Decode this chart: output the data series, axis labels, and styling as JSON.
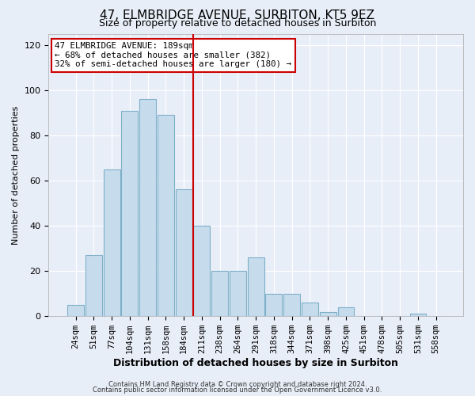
{
  "title": "47, ELMBRIDGE AVENUE, SURBITON, KT5 9EZ",
  "subtitle": "Size of property relative to detached houses in Surbiton",
  "xlabel": "Distribution of detached houses by size in Surbiton",
  "ylabel": "Number of detached properties",
  "categories": [
    "24sqm",
    "51sqm",
    "77sqm",
    "104sqm",
    "131sqm",
    "158sqm",
    "184sqm",
    "211sqm",
    "238sqm",
    "264sqm",
    "291sqm",
    "318sqm",
    "344sqm",
    "371sqm",
    "398sqm",
    "425sqm",
    "451sqm",
    "478sqm",
    "505sqm",
    "531sqm",
    "558sqm"
  ],
  "values": [
    5,
    27,
    65,
    91,
    96,
    89,
    56,
    40,
    20,
    20,
    26,
    10,
    10,
    6,
    2,
    4,
    0,
    0,
    0,
    1,
    0
  ],
  "bar_color": "#c6dcec",
  "bar_edge_color": "#7dafc8",
  "highlight_index": 6,
  "highlight_line_color": "#cc0000",
  "annotation_text": "47 ELMBRIDGE AVENUE: 189sqm\n← 68% of detached houses are smaller (382)\n32% of semi-detached houses are larger (180) →",
  "annotation_box_color": "#ffffff",
  "annotation_box_edge": "#cc0000",
  "ylim": [
    0,
    125
  ],
  "yticks": [
    0,
    20,
    40,
    60,
    80,
    100,
    120
  ],
  "footer1": "Contains HM Land Registry data © Crown copyright and database right 2024.",
  "footer2": "Contains public sector information licensed under the Open Government Licence v3.0.",
  "background_color": "#e8eef8",
  "plot_background": "#e8eef8",
  "grid_color": "#ffffff",
  "title_fontsize": 11,
  "subtitle_fontsize": 9,
  "ylabel_fontsize": 8,
  "xlabel_fontsize": 9
}
